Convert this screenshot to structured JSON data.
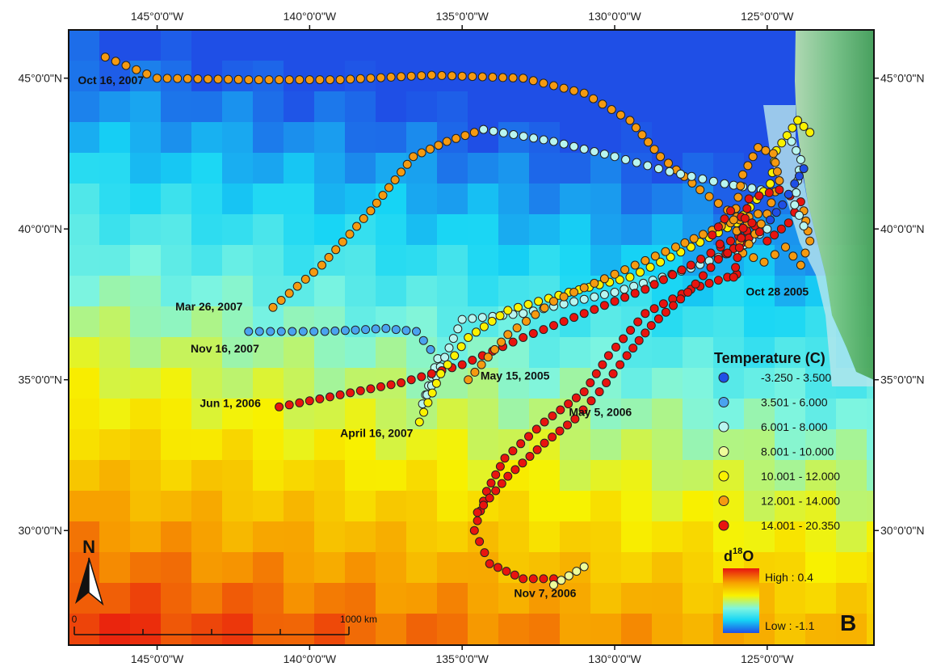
{
  "panel_letter": "B",
  "axes": {
    "lon_labels": [
      "145°0'0\"W",
      "140°0'0\"W",
      "135°0'0\"W",
      "130°0'0\"W",
      "125°0'0\"W"
    ],
    "lon_values": [
      -145,
      -140,
      -135,
      -130,
      -125
    ],
    "lat_labels": [
      "45°0'0\"N",
      "40°0'0\"N",
      "35°0'0\"N",
      "30°0'0\"N"
    ],
    "lat_values": [
      45,
      40,
      35,
      30
    ],
    "lon_range": [
      -147.9,
      -121.5
    ],
    "lat_range": [
      26.2,
      46.6
    ]
  },
  "legend": {
    "title": "Temperature (C)",
    "classes": [
      {
        "label": "-3.250 - 3.500",
        "color": "#1f4fe6"
      },
      {
        "label": "3.501 - 6.000",
        "color": "#4aa3ef"
      },
      {
        "label": "6.001 - 8.000",
        "color": "#b8f5f0"
      },
      {
        "label": "8.001 - 10.000",
        "color": "#eefc9a"
      },
      {
        "label": "10.001 - 12.000",
        "color": "#fbf200"
      },
      {
        "label": "12.001 - 14.000",
        "color": "#f59a10"
      },
      {
        "label": "14.001 - 20.350",
        "color": "#e8140f"
      }
    ]
  },
  "d18o": {
    "title": "d",
    "superscript": "18",
    "element": "O",
    "high_label": "High : 0.4",
    "low_label": "Low : -1.1",
    "high_value": 0.4,
    "low_value": -1.1
  },
  "scale_bar": {
    "start_label": "0",
    "end_label": "1000 km"
  },
  "north_arrow": {
    "label": "N"
  },
  "date_labels": [
    {
      "text": "Oct 16, 2007",
      "lon": -147.6,
      "lat": 44.8
    },
    {
      "text": "Mar 26, 2007",
      "lon": -144.4,
      "lat": 37.3
    },
    {
      "text": "Nov 16, 2007",
      "lon": -143.9,
      "lat": 35.9
    },
    {
      "text": "Jun 1, 2006",
      "lon": -143.6,
      "lat": 34.1
    },
    {
      "text": "April 16, 2007",
      "lon": -139.0,
      "lat": 33.1
    },
    {
      "text": "May 15, 2005",
      "lon": -134.4,
      "lat": 35.0
    },
    {
      "text": "May 5, 2006",
      "lon": -131.5,
      "lat": 33.8
    },
    {
      "text": "Oct 28 2005",
      "lon": -125.7,
      "lat": 37.8
    },
    {
      "text": "Nov 7, 2006",
      "lon": -133.3,
      "lat": 27.8
    }
  ],
  "tracks": [
    {
      "name": "Oct 16, 2007 track",
      "color": "#f59a10",
      "points": [
        [
          -146.7,
          45.7
        ],
        [
          -145.0,
          45.0
        ],
        [
          -142.0,
          44.95
        ],
        [
          -139.0,
          44.95
        ],
        [
          -136.0,
          45.1
        ],
        [
          -133.0,
          45.0
        ],
        [
          -131.0,
          44.5
        ],
        [
          -129.5,
          43.6
        ],
        [
          -128.5,
          42.4
        ],
        [
          -127.2,
          41.3
        ],
        [
          -126.0,
          40.4
        ],
        [
          -125.3,
          39.9
        ]
      ]
    },
    {
      "name": "Mar 26, 2007 track",
      "color": "#f59a10",
      "points": [
        [
          -141.2,
          37.4
        ],
        [
          -139.6,
          38.8
        ],
        [
          -138.0,
          40.6
        ],
        [
          -136.6,
          42.4
        ],
        [
          -135.5,
          42.9
        ],
        [
          -134.3,
          43.3
        ]
      ]
    },
    {
      "name": "Mar 26, 2007 track cont",
      "color": "#b8f5f0",
      "points": [
        [
          -134.3,
          43.3
        ],
        [
          -132.0,
          42.9
        ],
        [
          -130.0,
          42.4
        ],
        [
          -128.2,
          41.9
        ],
        [
          -126.4,
          41.5
        ],
        [
          -125.2,
          41.3
        ]
      ]
    },
    {
      "name": "Nov 16, 2007 track",
      "color": "#4aa3ef",
      "points": [
        [
          -142.0,
          36.6
        ],
        [
          -139.5,
          36.6
        ],
        [
          -137.5,
          36.7
        ],
        [
          -136.5,
          36.6
        ],
        [
          -135.8,
          35.7
        ]
      ]
    },
    {
      "name": "Nov 16, 2007 track cont",
      "color": "#b8f5f0",
      "points": [
        [
          -135.8,
          35.7
        ],
        [
          -136.3,
          34.2
        ],
        [
          -136.0,
          34.8
        ],
        [
          -135.0,
          37.0
        ],
        [
          -133.0,
          37.2
        ],
        [
          -130.0,
          37.9
        ],
        [
          -127.5,
          38.7
        ],
        [
          -126.0,
          39.3
        ],
        [
          -125.0,
          40.0
        ]
      ]
    },
    {
      "name": "Jun 1, 2006 track",
      "color": "#e8140f",
      "points": [
        [
          -141.0,
          34.1
        ],
        [
          -139.0,
          34.5
        ],
        [
          -137.0,
          34.9
        ],
        [
          -135.0,
          35.5
        ],
        [
          -133.0,
          36.4
        ],
        [
          -131.0,
          37.2
        ],
        [
          -129.0,
          38.0
        ],
        [
          -127.5,
          38.8
        ],
        [
          -126.2,
          39.6
        ],
        [
          -125.4,
          40.1
        ]
      ]
    },
    {
      "name": "April 16, 2007 track",
      "color": "#fbf200",
      "points": [
        [
          -136.4,
          33.6
        ],
        [
          -135.7,
          35.2
        ],
        [
          -134.8,
          36.4
        ],
        [
          -133.5,
          37.3
        ],
        [
          -131.5,
          37.9
        ],
        [
          -129.5,
          38.4
        ],
        [
          -127.5,
          39.4
        ],
        [
          -126.0,
          40.2
        ],
        [
          -124.9,
          41.5
        ],
        [
          -124.7,
          42.6
        ],
        [
          -124.0,
          43.6
        ],
        [
          -123.6,
          43.2
        ]
      ]
    },
    {
      "name": "May 15, 2005 track",
      "color": "#f59a10",
      "points": [
        [
          -134.8,
          35.0
        ],
        [
          -133.5,
          36.5
        ],
        [
          -132.0,
          37.6
        ],
        [
          -130.0,
          38.5
        ],
        [
          -128.0,
          39.4
        ],
        [
          -126.5,
          40.1
        ],
        [
          -125.3,
          40.5
        ]
      ]
    },
    {
      "name": "May 5, 2006 loop",
      "color": "#e8140f",
      "points": [
        [
          -126.0,
          38.5
        ],
        [
          -127.5,
          38.0
        ],
        [
          -129.0,
          37.2
        ],
        [
          -130.2,
          35.8
        ],
        [
          -131.0,
          34.6
        ],
        [
          -132.3,
          33.6
        ],
        [
          -133.6,
          32.4
        ],
        [
          -134.2,
          31.3
        ],
        [
          -134.6,
          30.0
        ],
        [
          -134.1,
          28.9
        ],
        [
          -133.0,
          28.4
        ],
        [
          -132.0,
          28.4
        ]
      ]
    },
    {
      "name": "May 5, 2006 loop return",
      "color": "#e8140f",
      "points": [
        [
          -134.5,
          30.6
        ],
        [
          -133.5,
          31.8
        ],
        [
          -132.3,
          32.9
        ],
        [
          -131.3,
          33.7
        ],
        [
          -130.5,
          34.6
        ],
        [
          -129.6,
          35.8
        ],
        [
          -128.8,
          36.8
        ],
        [
          -127.6,
          37.9
        ],
        [
          -126.6,
          39.0
        ],
        [
          -125.6,
          39.7
        ]
      ]
    },
    {
      "name": "Nov 7, 2006 segment",
      "color": "#eefc9a",
      "points": [
        [
          -132.0,
          28.2
        ],
        [
          -131.5,
          28.5
        ],
        [
          -131.0,
          28.8
        ]
      ]
    },
    {
      "name": "Coastal cluster",
      "color": "#f59a10",
      "points": [
        [
          -125.6,
          39.5
        ],
        [
          -125.0,
          40.5
        ],
        [
          -124.6,
          41.6
        ],
        [
          -124.8,
          42.5
        ],
        [
          -125.3,
          42.7
        ],
        [
          -125.8,
          41.8
        ],
        [
          -126.1,
          40.3
        ],
        [
          -125.8,
          39.2
        ],
        [
          -125.1,
          38.9
        ],
        [
          -124.4,
          39.4
        ],
        [
          -123.9,
          38.8
        ],
        [
          -123.6,
          39.6
        ],
        [
          -123.8,
          40.6
        ]
      ]
    },
    {
      "name": "Coastal cluster red",
      "color": "#e8140f",
      "points": [
        [
          -126.3,
          39.2
        ],
        [
          -126.8,
          39.8
        ],
        [
          -126.2,
          40.6
        ],
        [
          -125.5,
          40.2
        ],
        [
          -125.0,
          39.6
        ],
        [
          -124.3,
          40.2
        ],
        [
          -123.9,
          40.9
        ],
        [
          -124.6,
          41.3
        ],
        [
          -125.6,
          41.0
        ],
        [
          -126.1,
          38.4
        ]
      ]
    },
    {
      "name": "Coastal cluster cyan",
      "color": "#b8f5f0",
      "points": [
        [
          -124.2,
          42.9
        ],
        [
          -123.9,
          42.3
        ],
        [
          -124.0,
          41.6
        ],
        [
          -124.1,
          40.8
        ],
        [
          -123.8,
          40.1
        ]
      ]
    },
    {
      "name": "Coastal cluster blue",
      "color": "#1f4fe6",
      "points": [
        [
          -123.8,
          42.0
        ],
        [
          -124.1,
          41.5
        ],
        [
          -124.5,
          40.8
        ],
        [
          -124.9,
          40.3
        ]
      ]
    }
  ]
}
